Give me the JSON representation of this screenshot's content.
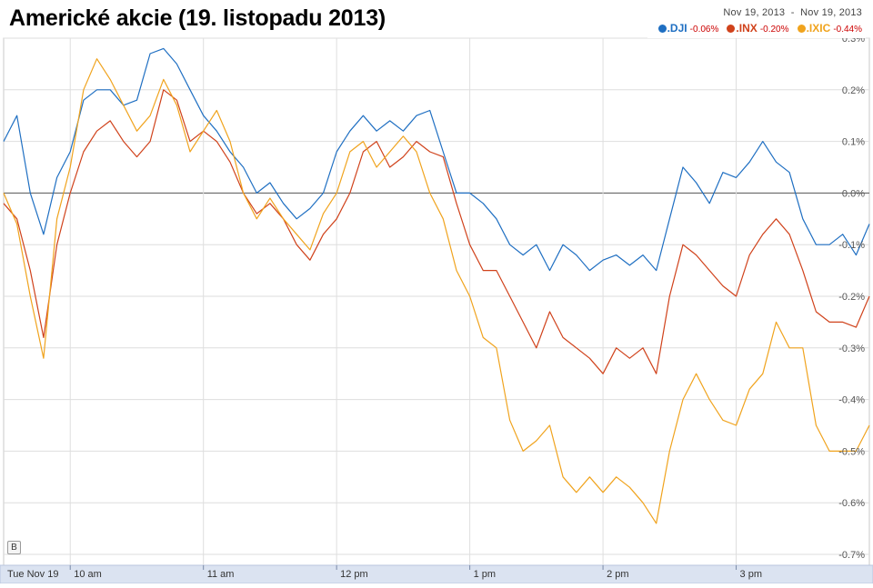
{
  "title": "Americké akcie (19. listopadu 2013)",
  "legend": {
    "date_from": "Nov 19, 2013",
    "date_separator": "-",
    "date_to": "Nov 19, 2013",
    "items": [
      {
        "name": ".DJI",
        "change": "-0.06%",
        "color": "#1f6fc2"
      },
      {
        "name": ".INX",
        "change": "-0.20%",
        "color": "#d0421b"
      },
      {
        "name": ".IXIC",
        "change": "-0.44%",
        "color": "#f0a31d"
      }
    ]
  },
  "b_button_label": "B",
  "chart_data": {
    "type": "line",
    "title": "Americké akcie (19. listopadu 2013)",
    "xlabel": "",
    "ylabel": "",
    "x_tick_labels": [
      "Tue Nov 19",
      "10 am",
      "11 am",
      "12 pm",
      "1 pm",
      "2 pm",
      "3 pm"
    ],
    "x_tick_times": [
      9.5,
      10,
      11,
      12,
      13,
      14,
      15
    ],
    "x_range": [
      9.5,
      16
    ],
    "y_unit": "%",
    "y_tick_labels": [
      "0.3%",
      "0.2%",
      "0.1%",
      "0.0%",
      "-0.1%",
      "-0.2%",
      "-0.3%",
      "-0.4%",
      "-0.5%",
      "-0.6%",
      "-0.7%"
    ],
    "y_tick_values": [
      0.3,
      0.2,
      0.1,
      0.0,
      -0.1,
      -0.2,
      -0.3,
      -0.4,
      -0.5,
      -0.6,
      -0.7
    ],
    "ylim": [
      -0.7,
      0.3
    ],
    "grid": true,
    "legend_position": "top-right",
    "series": [
      {
        "name": ".DJI",
        "color": "#1f6fc2",
        "x": [
          9.5,
          9.6,
          9.7,
          9.8,
          9.9,
          10.0,
          10.1,
          10.2,
          10.3,
          10.4,
          10.5,
          10.6,
          10.7,
          10.8,
          10.9,
          11.0,
          11.1,
          11.2,
          11.3,
          11.4,
          11.5,
          11.6,
          11.7,
          11.8,
          11.9,
          12.0,
          12.1,
          12.2,
          12.3,
          12.4,
          12.5,
          12.6,
          12.7,
          12.8,
          12.9,
          13.0,
          13.1,
          13.2,
          13.3,
          13.4,
          13.5,
          13.6,
          13.7,
          13.8,
          13.9,
          14.0,
          14.1,
          14.2,
          14.3,
          14.4,
          14.5,
          14.6,
          14.7,
          14.8,
          14.9,
          15.0,
          15.1,
          15.2,
          15.3,
          15.4,
          15.5,
          15.6,
          15.7,
          15.8,
          15.9,
          16.0
        ],
        "values": [
          0.1,
          0.15,
          0.0,
          -0.08,
          0.03,
          0.08,
          0.18,
          0.2,
          0.2,
          0.17,
          0.18,
          0.27,
          0.28,
          0.25,
          0.2,
          0.15,
          0.12,
          0.08,
          0.05,
          0.0,
          0.02,
          -0.02,
          -0.05,
          -0.03,
          0.0,
          0.08,
          0.12,
          0.15,
          0.12,
          0.14,
          0.12,
          0.15,
          0.16,
          0.08,
          0.0,
          0.0,
          -0.02,
          -0.05,
          -0.1,
          -0.12,
          -0.1,
          -0.15,
          -0.1,
          -0.12,
          -0.15,
          -0.13,
          -0.12,
          -0.14,
          -0.12,
          -0.15,
          -0.05,
          0.05,
          0.02,
          -0.02,
          0.04,
          0.03,
          0.06,
          0.1,
          0.06,
          0.04,
          -0.05,
          -0.1,
          -0.1,
          -0.08,
          -0.12,
          -0.06
        ]
      },
      {
        "name": ".INX",
        "color": "#d0421b",
        "x": [
          9.5,
          9.6,
          9.7,
          9.8,
          9.9,
          10.0,
          10.1,
          10.2,
          10.3,
          10.4,
          10.5,
          10.6,
          10.7,
          10.8,
          10.9,
          11.0,
          11.1,
          11.2,
          11.3,
          11.4,
          11.5,
          11.6,
          11.7,
          11.8,
          11.9,
          12.0,
          12.1,
          12.2,
          12.3,
          12.4,
          12.5,
          12.6,
          12.7,
          12.8,
          12.9,
          13.0,
          13.1,
          13.2,
          13.3,
          13.4,
          13.5,
          13.6,
          13.7,
          13.8,
          13.9,
          14.0,
          14.1,
          14.2,
          14.3,
          14.4,
          14.5,
          14.6,
          14.7,
          14.8,
          14.9,
          15.0,
          15.1,
          15.2,
          15.3,
          15.4,
          15.5,
          15.6,
          15.7,
          15.8,
          15.9,
          16.0
        ],
        "values": [
          -0.02,
          -0.05,
          -0.15,
          -0.28,
          -0.1,
          0.0,
          0.08,
          0.12,
          0.14,
          0.1,
          0.07,
          0.1,
          0.2,
          0.18,
          0.1,
          0.12,
          0.1,
          0.06,
          0.0,
          -0.04,
          -0.02,
          -0.05,
          -0.1,
          -0.13,
          -0.08,
          -0.05,
          0.0,
          0.08,
          0.1,
          0.05,
          0.07,
          0.1,
          0.08,
          0.07,
          -0.02,
          -0.1,
          -0.15,
          -0.15,
          -0.2,
          -0.25,
          -0.3,
          -0.23,
          -0.28,
          -0.3,
          -0.32,
          -0.35,
          -0.3,
          -0.32,
          -0.3,
          -0.35,
          -0.2,
          -0.1,
          -0.12,
          -0.15,
          -0.18,
          -0.2,
          -0.12,
          -0.08,
          -0.05,
          -0.08,
          -0.15,
          -0.23,
          -0.25,
          -0.25,
          -0.26,
          -0.2
        ]
      },
      {
        "name": ".IXIC",
        "color": "#f0a31d",
        "x": [
          9.5,
          9.6,
          9.7,
          9.8,
          9.9,
          10.0,
          10.1,
          10.2,
          10.3,
          10.4,
          10.5,
          10.6,
          10.7,
          10.8,
          10.9,
          11.0,
          11.1,
          11.2,
          11.3,
          11.4,
          11.5,
          11.6,
          11.7,
          11.8,
          11.9,
          12.0,
          12.1,
          12.2,
          12.3,
          12.4,
          12.5,
          12.6,
          12.7,
          12.8,
          12.9,
          13.0,
          13.1,
          13.2,
          13.3,
          13.4,
          13.5,
          13.6,
          13.7,
          13.8,
          13.9,
          14.0,
          14.1,
          14.2,
          14.3,
          14.4,
          14.5,
          14.6,
          14.7,
          14.8,
          14.9,
          15.0,
          15.1,
          15.2,
          15.3,
          15.4,
          15.5,
          15.6,
          15.7,
          15.8,
          15.9,
          16.0
        ],
        "values": [
          0.0,
          -0.06,
          -0.2,
          -0.32,
          -0.05,
          0.05,
          0.2,
          0.26,
          0.22,
          0.17,
          0.12,
          0.15,
          0.22,
          0.17,
          0.08,
          0.12,
          0.16,
          0.1,
          0.0,
          -0.05,
          -0.01,
          -0.05,
          -0.08,
          -0.11,
          -0.04,
          0.0,
          0.08,
          0.1,
          0.05,
          0.08,
          0.11,
          0.08,
          0.0,
          -0.05,
          -0.15,
          -0.2,
          -0.28,
          -0.3,
          -0.44,
          -0.5,
          -0.48,
          -0.45,
          -0.55,
          -0.58,
          -0.55,
          -0.58,
          -0.55,
          -0.57,
          -0.6,
          -0.64,
          -0.5,
          -0.4,
          -0.35,
          -0.4,
          -0.44,
          -0.45,
          -0.38,
          -0.35,
          -0.25,
          -0.3,
          -0.3,
          -0.45,
          -0.5,
          -0.5,
          -0.5,
          -0.45
        ]
      }
    ]
  }
}
